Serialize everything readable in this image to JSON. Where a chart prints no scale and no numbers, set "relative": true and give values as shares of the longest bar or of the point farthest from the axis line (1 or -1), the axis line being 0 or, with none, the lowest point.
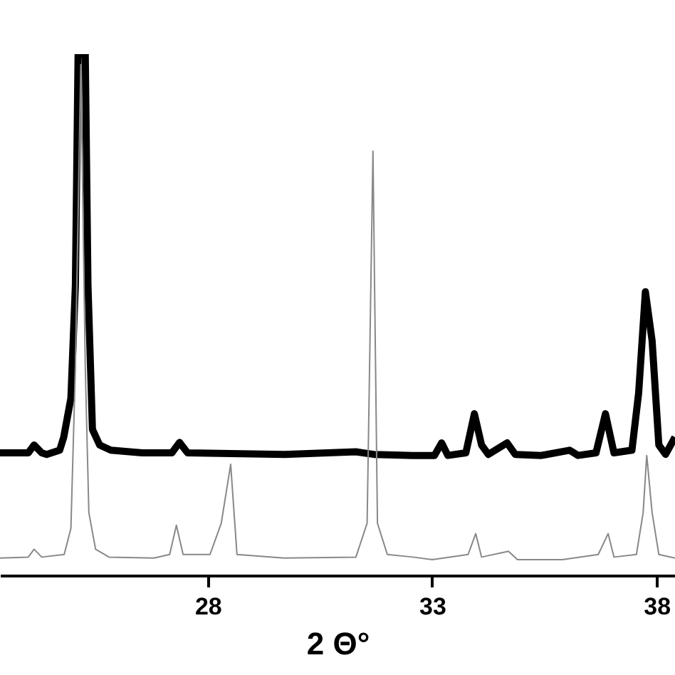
{
  "chart_data": {
    "type": "line",
    "xlabel": "2 Θ°",
    "relative": true,
    "xlim": [
      23.37,
      38.41
    ],
    "xticks": [
      28,
      33,
      38
    ],
    "grid": false,
    "marker": "none",
    "series": [
      {
        "color": "#000000",
        "x": [
          23.37,
          24.0,
          24.13,
          24.3,
          24.41,
          24.7,
          24.79,
          24.95,
          25.05,
          25.11,
          25.27,
          25.33,
          25.43,
          25.59,
          25.84,
          26.54,
          27.2,
          27.37,
          27.55,
          29.71,
          31.3,
          31.7,
          32.57,
          33.05,
          33.21,
          33.35,
          33.75,
          33.94,
          34.1,
          34.25,
          34.67,
          34.85,
          35.43,
          36.06,
          36.25,
          36.65,
          36.86,
          37.05,
          37.45,
          37.6,
          37.75,
          37.9,
          38.05,
          38.2,
          38.41
        ],
        "values": [
          0.235,
          0.235,
          0.25,
          0.235,
          0.232,
          0.24,
          0.265,
          0.34,
          0.557,
          1.0,
          1.0,
          0.557,
          0.28,
          0.25,
          0.24,
          0.235,
          0.235,
          0.255,
          0.235,
          0.232,
          0.237,
          0.232,
          0.23,
          0.23,
          0.254,
          0.23,
          0.235,
          0.31,
          0.25,
          0.232,
          0.254,
          0.232,
          0.23,
          0.24,
          0.23,
          0.235,
          0.31,
          0.235,
          0.24,
          0.35,
          0.544,
          0.45,
          0.25,
          0.232,
          0.265
        ]
      },
      {
        "color": "#888888",
        "x": [
          23.37,
          24.0,
          24.13,
          24.3,
          24.8,
          24.95,
          25.05,
          25.17,
          25.27,
          25.35,
          25.5,
          25.8,
          26.8,
          27.15,
          27.3,
          27.45,
          28.05,
          28.3,
          28.51,
          28.65,
          29.7,
          31.3,
          31.55,
          31.68,
          31.78,
          32.0,
          32.57,
          33.0,
          33.8,
          33.97,
          34.1,
          34.7,
          34.9,
          35.9,
          36.7,
          36.92,
          37.05,
          37.55,
          37.7,
          37.78,
          37.9,
          38.05,
          38.41
        ],
        "values": [
          0.033,
          0.035,
          0.05,
          0.035,
          0.04,
          0.09,
          0.4,
          0.98,
          0.4,
          0.12,
          0.05,
          0.035,
          0.033,
          0.04,
          0.096,
          0.04,
          0.04,
          0.1,
          0.213,
          0.04,
          0.033,
          0.035,
          0.1,
          0.814,
          0.1,
          0.04,
          0.035,
          0.03,
          0.04,
          0.08,
          0.035,
          0.046,
          0.03,
          0.03,
          0.04,
          0.08,
          0.035,
          0.04,
          0.12,
          0.23,
          0.12,
          0.04,
          0.033
        ]
      }
    ]
  }
}
